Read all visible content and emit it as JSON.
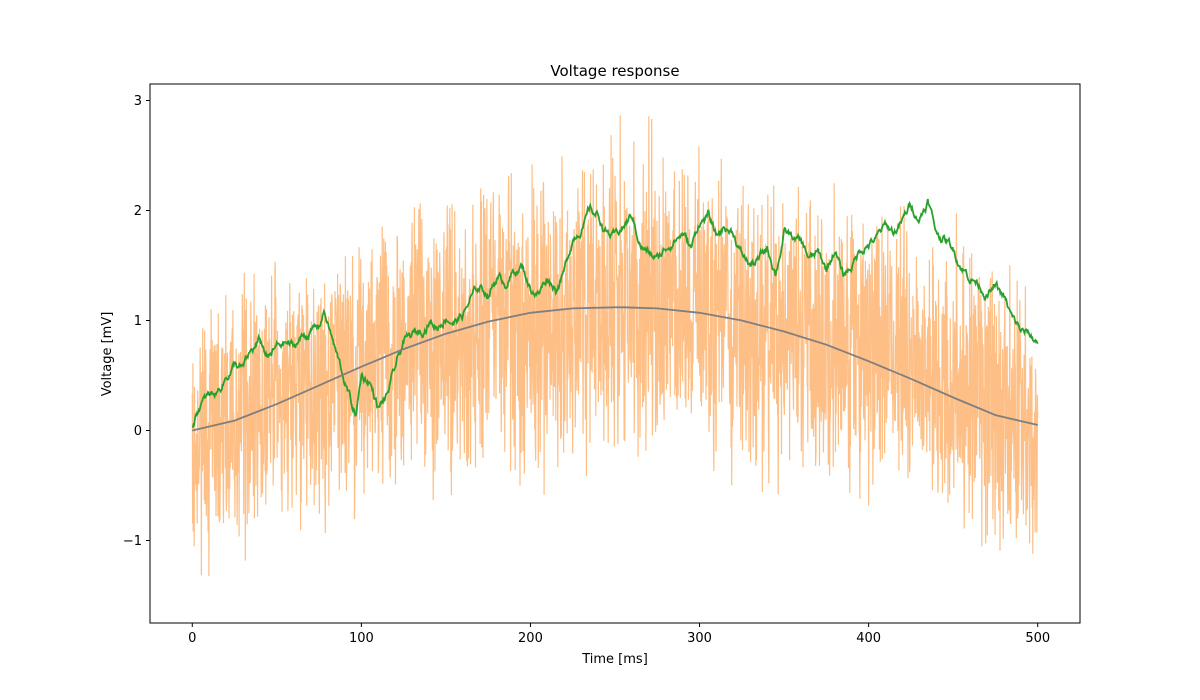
{
  "chart_data": {
    "type": "line",
    "title": "Voltage response",
    "xlabel": "Time [ms]",
    "ylabel": "Voltage [mV]",
    "xlim": [
      -25,
      525
    ],
    "ylim": [
      -1.75,
      3.15
    ],
    "xticks": [
      0,
      100,
      200,
      300,
      400,
      500
    ],
    "xtick_labels": [
      "0",
      "100",
      "200",
      "300",
      "400",
      "500"
    ],
    "yticks": [
      -1,
      0,
      1,
      2,
      3
    ],
    "ytick_labels": [
      "−1",
      "0",
      "1",
      "2",
      "3"
    ],
    "grid": false,
    "legend": "none",
    "series": [
      {
        "style": "noisy",
        "color": "#fdbf86",
        "x": [
          0,
          25,
          50,
          75,
          100,
          125,
          150,
          175,
          200,
          225,
          250,
          275,
          300,
          325,
          350,
          375,
          400,
          425,
          450,
          475,
          500
        ],
        "center": [
          0.05,
          0.2,
          0.35,
          0.5,
          0.65,
          0.78,
          0.9,
          1.0,
          1.05,
          1.1,
          1.12,
          1.1,
          1.05,
          1.0,
          0.95,
          0.85,
          0.75,
          0.6,
          0.45,
          0.3,
          0.15
        ],
        "low": [
          -1.5,
          -1.25,
          -1.0,
          -0.95,
          -0.85,
          -0.7,
          -0.65,
          -0.55,
          -0.85,
          -0.45,
          -0.45,
          -0.5,
          -0.4,
          -0.55,
          -0.65,
          -0.65,
          -0.95,
          -0.65,
          -0.9,
          -1.25,
          -1.15
        ],
        "high": [
          1.15,
          1.5,
          1.55,
          1.65,
          1.85,
          2.05,
          2.25,
          2.35,
          2.45,
          2.55,
          2.9,
          2.9,
          2.6,
          2.5,
          2.3,
          2.25,
          2.25,
          2.1,
          2.0,
          1.9,
          1.45
        ]
      },
      {
        "style": "line",
        "color": "#2ca02c",
        "x": [
          0,
          5,
          10,
          15,
          20,
          25,
          30,
          35,
          40,
          45,
          50,
          55,
          60,
          65,
          70,
          75,
          78,
          85,
          90,
          95,
          97,
          100,
          105,
          110,
          115,
          120,
          125,
          130,
          135,
          140,
          145,
          150,
          155,
          160,
          165,
          170,
          175,
          180,
          185,
          190,
          195,
          200,
          205,
          210,
          215,
          220,
          225,
          232,
          235,
          240,
          245,
          250,
          255,
          260,
          265,
          270,
          275,
          280,
          285,
          290,
          295,
          300,
          305,
          310,
          315,
          320,
          325,
          330,
          335,
          340,
          345,
          350,
          355,
          360,
          365,
          370,
          375,
          380,
          385,
          390,
          395,
          400,
          405,
          410,
          415,
          420,
          425,
          430,
          435,
          440,
          445,
          450,
          455,
          460,
          465,
          470,
          475,
          480,
          485,
          490,
          495,
          500
        ],
        "y": [
          0.05,
          0.25,
          0.3,
          0.35,
          0.5,
          0.6,
          0.55,
          0.7,
          0.8,
          0.65,
          0.75,
          0.8,
          0.75,
          0.85,
          0.9,
          0.95,
          1.1,
          0.7,
          0.45,
          0.2,
          0.15,
          0.5,
          0.45,
          0.2,
          0.3,
          0.55,
          0.8,
          0.85,
          0.9,
          1.0,
          0.95,
          1.05,
          1.0,
          1.05,
          1.2,
          1.3,
          1.25,
          1.4,
          1.35,
          1.45,
          1.5,
          1.3,
          1.25,
          1.4,
          1.3,
          1.45,
          1.75,
          1.9,
          2.0,
          1.95,
          1.8,
          1.75,
          1.85,
          1.95,
          1.7,
          1.6,
          1.55,
          1.65,
          1.75,
          1.8,
          1.65,
          1.9,
          1.95,
          1.75,
          1.85,
          1.8,
          1.6,
          1.5,
          1.55,
          1.65,
          1.45,
          1.8,
          1.75,
          1.7,
          1.55,
          1.6,
          1.45,
          1.65,
          1.4,
          1.5,
          1.65,
          1.7,
          1.75,
          1.85,
          1.8,
          1.9,
          2.05,
          1.95,
          2.1,
          1.8,
          1.75,
          1.65,
          1.5,
          1.4,
          1.35,
          1.25,
          1.3,
          1.2,
          1.0,
          0.9,
          0.85,
          0.8
        ]
      },
      {
        "style": "smooth",
        "color": "#7f7f7f",
        "x": [
          0,
          25,
          50,
          75,
          100,
          125,
          150,
          175,
          200,
          225,
          250,
          255,
          275,
          300,
          325,
          350,
          375,
          400,
          425,
          450,
          475,
          500
        ],
        "y": [
          0.0,
          0.09,
          0.24,
          0.41,
          0.58,
          0.74,
          0.88,
          0.99,
          1.07,
          1.11,
          1.12,
          1.12,
          1.11,
          1.07,
          1.0,
          0.9,
          0.78,
          0.63,
          0.47,
          0.3,
          0.14,
          0.05
        ]
      }
    ]
  }
}
